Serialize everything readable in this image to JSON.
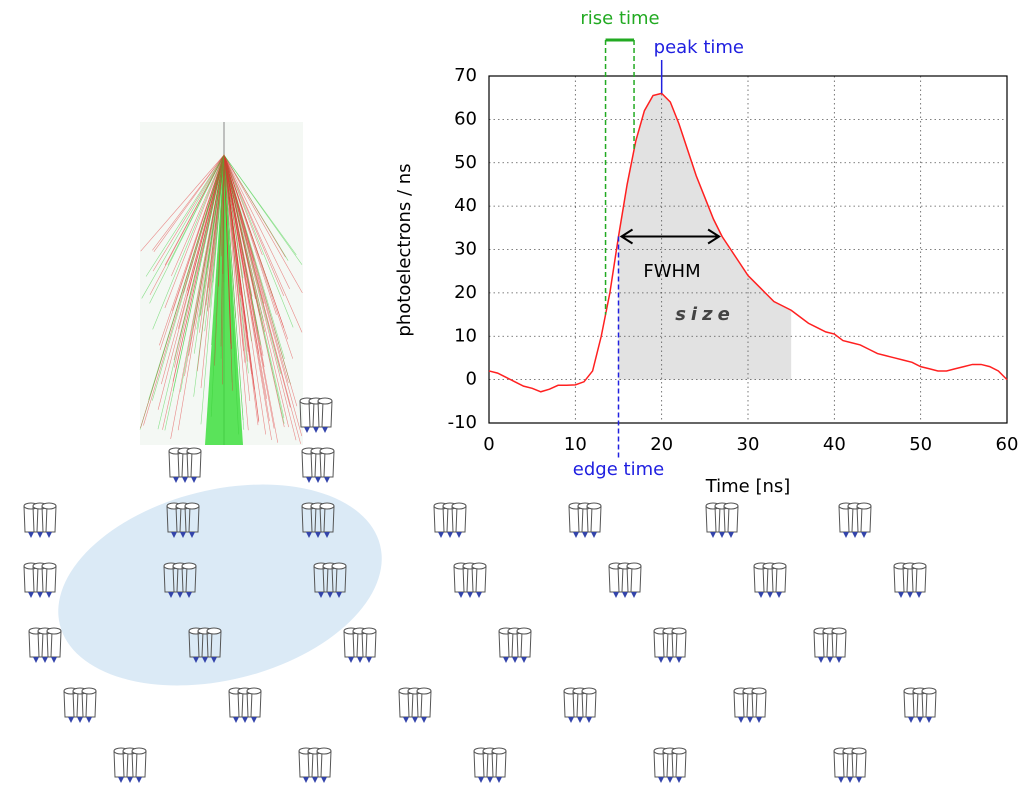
{
  "chart_data": {
    "type": "line",
    "ylabel": "photoelectrons / ns",
    "xlabel": "Time [ns]",
    "xlim": [
      0,
      60
    ],
    "ylim": [
      -10,
      70
    ],
    "xticks": [
      0,
      10,
      20,
      30,
      40,
      50,
      60
    ],
    "yticks": [
      -10,
      0,
      10,
      20,
      30,
      40,
      50,
      60,
      70
    ],
    "grid": true,
    "x": [
      0,
      1,
      2,
      3,
      4,
      5,
      6,
      7,
      8,
      9,
      10,
      11,
      12,
      13,
      14,
      15,
      16,
      17,
      18,
      19,
      20,
      21,
      22,
      23,
      24,
      25,
      26,
      27,
      28,
      29,
      30,
      31,
      32,
      33,
      34,
      35,
      36,
      37,
      38,
      39,
      40,
      41,
      42,
      43,
      44,
      45,
      46,
      47,
      48,
      49,
      50,
      51,
      52,
      53,
      54,
      55,
      56,
      57,
      58,
      59,
      60
    ],
    "series": [
      {
        "color": "#ff2020",
        "values": [
          2,
          1.5,
          0.5,
          -0.5,
          -1.5,
          -2,
          -2.8,
          -2.2,
          -1.3,
          -1.3,
          -1.2,
          -0.5,
          2,
          10,
          20,
          33,
          45,
          55,
          62,
          65.5,
          66,
          64,
          59,
          53,
          47,
          42,
          37,
          33,
          30,
          27,
          24,
          22,
          20,
          18,
          17,
          16,
          14.5,
          13,
          12,
          11,
          10.5,
          9,
          8.5,
          8,
          7,
          6,
          5.5,
          5,
          4.5,
          4,
          3,
          2.5,
          2,
          2,
          2.5,
          3,
          3.5,
          3.5,
          3,
          2,
          0
        ]
      }
    ],
    "shade": {
      "label": "size",
      "color": "#e2e2e2",
      "x": [
        15,
        35
      ]
    },
    "rise_time": {
      "label": "rise time",
      "color": "#22aa22",
      "x": [
        13.5,
        16.8
      ]
    },
    "peak_time": {
      "label": "peak time",
      "color": "#2020e0",
      "x": 20
    },
    "edge_time": {
      "label": "edge time",
      "color": "#2020e0",
      "x": 15
    },
    "fwhm": {
      "label": "FWHM",
      "x": [
        15,
        27
      ],
      "y": 33
    }
  }
}
